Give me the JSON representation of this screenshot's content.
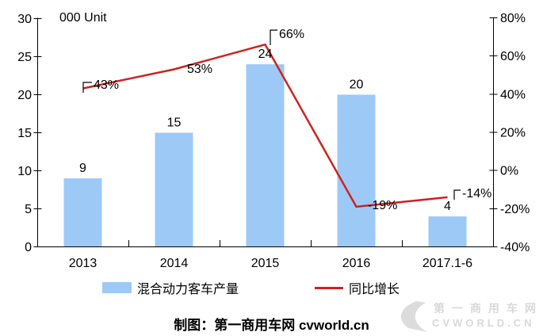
{
  "chart_data": {
    "type": "combo",
    "title": "000 Unit",
    "categories": [
      "2013",
      "2014",
      "2015",
      "2016",
      "2017.1-6"
    ],
    "series": [
      {
        "name": "混合动力客车产量",
        "type": "bar",
        "axis": "left",
        "color": "#9DC9F7",
        "values": [
          9,
          15,
          24,
          20,
          4
        ],
        "labels": [
          "9",
          "15",
          "24",
          "20",
          "4"
        ]
      },
      {
        "name": "同比增长",
        "type": "line",
        "axis": "right",
        "color": "#CD2323",
        "values": [
          43,
          53,
          66,
          -19,
          -14
        ],
        "labels": [
          "43%",
          "53%",
          "66%",
          "-19%",
          "-14%"
        ]
      }
    ],
    "left_axis": {
      "title": "000 Unit",
      "min": 0,
      "max": 30,
      "tick_values": [
        0,
        5,
        10,
        15,
        20,
        25,
        30
      ],
      "tick_labels": [
        "0",
        "5",
        "10",
        "15",
        "20",
        "25",
        "30"
      ]
    },
    "right_axis": {
      "min": -40,
      "max": 80,
      "tick_values": [
        -40,
        -20,
        0,
        20,
        40,
        60,
        80
      ],
      "tick_labels": [
        "-40%",
        "-20%",
        "0%",
        "20%",
        "40%",
        "60%",
        "80%"
      ]
    },
    "grid": false,
    "legend_position": "bottom"
  },
  "caption": "制图：第一商用车网 cvworld.cn",
  "watermark": {
    "line1": "第一商用车网",
    "line2": "CVWORLD.CN"
  },
  "colors": {
    "bar": "#9DC9F7",
    "line": "#CD2323",
    "axis": "#000000",
    "watermark": "#D9D9D9"
  }
}
